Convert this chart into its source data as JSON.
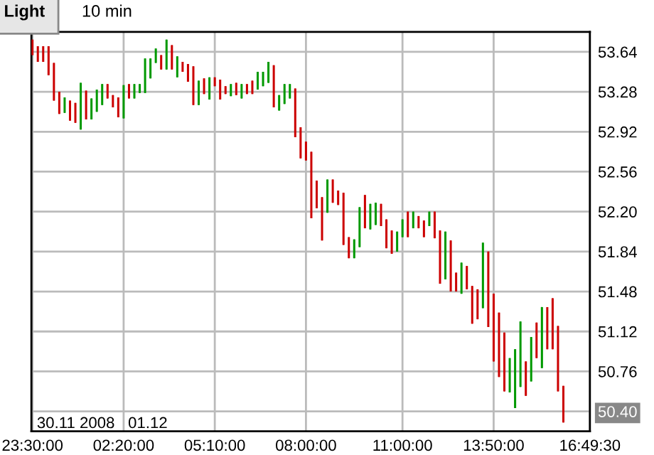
{
  "chart_data": {
    "type": "candlestick",
    "title": "Light",
    "subtitle": "10 min",
    "annotations": [
      "30.11 2008",
      "01.12"
    ],
    "x": [
      "2008-11-30T23:30",
      "2008-11-30T23:40",
      "2008-11-30T23:50",
      "2008-12-01T00:00",
      "2008-12-01T00:10",
      "2008-12-01T00:20",
      "2008-12-01T00:30",
      "2008-12-01T00:40",
      "2008-12-01T00:50",
      "2008-12-01T01:00",
      "2008-12-01T01:10",
      "2008-12-01T01:20",
      "2008-12-01T01:30",
      "2008-12-01T01:40",
      "2008-12-01T01:50",
      "2008-12-01T02:00",
      "2008-12-01T02:10",
      "2008-12-01T02:20",
      "2008-12-01T02:30",
      "2008-12-01T02:40",
      "2008-12-01T02:50",
      "2008-12-01T03:00",
      "2008-12-01T03:10",
      "2008-12-01T03:20",
      "2008-12-01T03:30",
      "2008-12-01T03:40",
      "2008-12-01T03:50",
      "2008-12-01T04:00",
      "2008-12-01T04:10",
      "2008-12-01T04:20",
      "2008-12-01T04:30",
      "2008-12-01T04:40",
      "2008-12-01T04:50",
      "2008-12-01T05:00",
      "2008-12-01T05:10",
      "2008-12-01T05:20",
      "2008-12-01T05:30",
      "2008-12-01T05:40",
      "2008-12-01T05:50",
      "2008-12-01T06:00",
      "2008-12-01T06:10",
      "2008-12-01T06:20",
      "2008-12-01T06:30",
      "2008-12-01T06:40",
      "2008-12-01T06:50",
      "2008-12-01T07:00",
      "2008-12-01T07:10",
      "2008-12-01T07:20",
      "2008-12-01T07:30",
      "2008-12-01T07:40",
      "2008-12-01T07:50",
      "2008-12-01T08:00",
      "2008-12-01T08:10",
      "2008-12-01T08:20",
      "2008-12-01T08:30",
      "2008-12-01T08:40",
      "2008-12-01T08:50",
      "2008-12-01T09:00",
      "2008-12-01T09:10",
      "2008-12-01T09:20",
      "2008-12-01T09:30",
      "2008-12-01T09:40",
      "2008-12-01T09:50",
      "2008-12-01T10:00",
      "2008-12-01T10:10",
      "2008-12-01T10:20",
      "2008-12-01T10:30",
      "2008-12-01T10:40",
      "2008-12-01T10:50",
      "2008-12-01T11:00",
      "2008-12-01T11:10",
      "2008-12-01T11:20",
      "2008-12-01T11:30",
      "2008-12-01T11:40",
      "2008-12-01T11:50",
      "2008-12-01T12:00",
      "2008-12-01T12:10",
      "2008-12-01T12:20",
      "2008-12-01T12:30",
      "2008-12-01T12:40",
      "2008-12-01T12:50",
      "2008-12-01T13:00",
      "2008-12-01T13:10",
      "2008-12-01T13:20",
      "2008-12-01T13:30",
      "2008-12-01T13:40",
      "2008-12-01T13:50",
      "2008-12-01T14:00",
      "2008-12-01T14:10",
      "2008-12-01T14:20",
      "2008-12-01T14:30",
      "2008-12-01T14:40",
      "2008-12-01T14:50",
      "2008-12-01T15:00",
      "2008-12-01T15:10",
      "2008-12-01T15:20",
      "2008-12-01T15:30",
      "2008-12-01T15:40",
      "2008-12-01T15:50",
      "2008-12-01T16:00"
    ],
    "ohlc": [
      [
        53.75,
        53.75,
        53.61,
        53.61
      ],
      [
        53.69,
        53.69,
        53.55,
        53.55
      ],
      [
        53.69,
        53.69,
        53.55,
        53.55
      ],
      [
        53.69,
        53.69,
        53.43,
        53.43
      ],
      [
        53.54,
        53.54,
        53.2,
        53.2
      ],
      [
        53.28,
        53.28,
        53.08,
        53.08
      ],
      [
        53.09,
        53.23,
        53.09,
        53.23
      ],
      [
        53.2,
        53.2,
        53.02,
        53.02
      ],
      [
        53.18,
        53.18,
        53.0,
        53.0
      ],
      [
        52.94,
        53.36,
        52.94,
        53.36
      ],
      [
        53.29,
        53.29,
        53.03,
        53.03
      ],
      [
        53.03,
        53.22,
        53.03,
        53.22
      ],
      [
        53.1,
        53.3,
        53.1,
        53.3
      ],
      [
        53.16,
        53.35,
        53.16,
        53.35
      ],
      [
        53.35,
        53.35,
        53.22,
        53.22
      ],
      [
        53.25,
        53.25,
        53.14,
        53.14
      ],
      [
        53.23,
        53.23,
        53.05,
        53.05
      ],
      [
        53.04,
        53.34,
        53.04,
        53.34
      ],
      [
        53.35,
        53.35,
        53.22,
        53.22
      ],
      [
        53.22,
        53.35,
        53.22,
        53.35
      ],
      [
        53.27,
        53.35,
        53.27,
        53.35
      ],
      [
        53.27,
        53.58,
        53.27,
        53.58
      ],
      [
        53.4,
        53.58,
        53.4,
        53.58
      ],
      [
        53.54,
        53.67,
        53.54,
        53.67
      ],
      [
        53.61,
        53.61,
        53.48,
        53.48
      ],
      [
        53.48,
        53.75,
        53.48,
        53.75
      ],
      [
        53.7,
        53.7,
        53.48,
        53.48
      ],
      [
        53.41,
        53.6,
        53.41,
        53.6
      ],
      [
        53.55,
        53.55,
        53.46,
        53.46
      ],
      [
        53.53,
        53.53,
        53.37,
        53.37
      ],
      [
        53.51,
        53.51,
        53.16,
        53.16
      ],
      [
        53.16,
        53.38,
        53.16,
        53.38
      ],
      [
        53.4,
        53.4,
        53.26,
        53.26
      ],
      [
        53.21,
        53.41,
        53.21,
        53.41
      ],
      [
        53.41,
        53.41,
        53.33,
        53.33
      ],
      [
        53.39,
        53.39,
        53.21,
        53.21
      ],
      [
        53.33,
        53.33,
        53.26,
        53.26
      ],
      [
        53.24,
        53.35,
        53.24,
        53.35
      ],
      [
        53.36,
        53.36,
        53.25,
        53.25
      ],
      [
        53.22,
        53.35,
        53.22,
        53.35
      ],
      [
        53.35,
        53.35,
        53.26,
        53.26
      ],
      [
        53.38,
        53.38,
        53.26,
        53.26
      ],
      [
        53.3,
        53.46,
        53.3,
        53.46
      ],
      [
        53.33,
        53.46,
        53.33,
        53.46
      ],
      [
        53.36,
        53.55,
        53.36,
        53.55
      ],
      [
        53.52,
        53.52,
        53.14,
        53.14
      ],
      [
        53.11,
        53.25,
        53.11,
        53.25
      ],
      [
        53.17,
        53.35,
        53.17,
        53.35
      ],
      [
        53.22,
        53.35,
        53.22,
        53.35
      ],
      [
        53.31,
        53.31,
        52.87,
        52.87
      ],
      [
        52.96,
        52.96,
        52.68,
        52.68
      ],
      [
        52.83,
        52.83,
        52.66,
        52.66
      ],
      [
        52.74,
        52.74,
        52.14,
        52.14
      ],
      [
        52.48,
        52.48,
        52.23,
        52.23
      ],
      [
        52.33,
        52.33,
        51.94,
        51.94
      ],
      [
        52.19,
        52.49,
        52.19,
        52.49
      ],
      [
        52.49,
        52.49,
        52.28,
        52.28
      ],
      [
        52.39,
        52.39,
        52.26,
        52.26
      ],
      [
        52.37,
        52.37,
        51.9,
        51.9
      ],
      [
        51.97,
        51.97,
        51.78,
        51.78
      ],
      [
        51.78,
        51.95,
        51.78,
        51.95
      ],
      [
        51.88,
        52.24,
        51.88,
        52.24
      ],
      [
        52.35,
        52.35,
        52.05,
        52.05
      ],
      [
        52.04,
        52.27,
        52.04,
        52.27
      ],
      [
        52.08,
        52.28,
        52.08,
        52.28
      ],
      [
        52.27,
        52.27,
        52.07,
        52.07
      ],
      [
        52.13,
        52.13,
        51.87,
        51.87
      ],
      [
        52.03,
        52.03,
        51.82,
        51.82
      ],
      [
        51.84,
        52.02,
        51.84,
        52.02
      ],
      [
        51.97,
        52.13,
        51.97,
        52.13
      ],
      [
        52.2,
        52.2,
        51.97,
        51.97
      ],
      [
        52.05,
        52.2,
        52.05,
        52.2
      ],
      [
        52.16,
        52.16,
        52.05,
        52.05
      ],
      [
        52.12,
        52.12,
        51.97,
        51.97
      ],
      [
        52.07,
        52.2,
        52.07,
        52.2
      ],
      [
        52.2,
        52.2,
        51.96,
        51.96
      ],
      [
        52.03,
        52.03,
        51.55,
        51.55
      ],
      [
        51.59,
        52.02,
        51.59,
        52.02
      ],
      [
        51.94,
        51.94,
        51.48,
        51.48
      ],
      [
        51.65,
        51.65,
        51.48,
        51.48
      ],
      [
        51.46,
        51.74,
        51.46,
        51.74
      ],
      [
        51.71,
        51.71,
        51.5,
        51.5
      ],
      [
        51.53,
        51.53,
        51.19,
        51.19
      ],
      [
        51.5,
        51.5,
        51.23,
        51.23
      ],
      [
        51.33,
        51.92,
        51.33,
        51.92
      ],
      [
        51.84,
        51.84,
        51.16,
        51.16
      ],
      [
        51.46,
        51.46,
        50.85,
        50.85
      ],
      [
        51.29,
        51.29,
        50.71,
        50.71
      ],
      [
        51.11,
        51.11,
        50.58,
        50.58
      ],
      [
        50.57,
        50.88,
        50.57,
        50.88
      ],
      [
        50.43,
        50.96,
        50.43,
        50.96
      ],
      [
        50.62,
        51.21,
        50.62,
        51.21
      ],
      [
        50.85,
        50.85,
        50.54,
        50.54
      ],
      [
        50.67,
        51.07,
        50.67,
        51.07
      ],
      [
        51.2,
        51.2,
        50.88,
        50.88
      ],
      [
        50.79,
        51.34,
        50.79,
        51.34
      ],
      [
        51.34,
        51.34,
        50.96,
        50.96
      ],
      [
        51.42,
        51.42,
        50.96,
        50.96
      ],
      [
        51.17,
        51.17,
        50.58,
        50.58
      ],
      [
        50.63,
        50.63,
        50.3,
        50.3
      ]
    ],
    "colors": [
      "#cc0000",
      "#cc0000",
      "#cc0000",
      "#cc0000",
      "#cc0000",
      "#cc0000",
      "#009900",
      "#cc0000",
      "#cc0000",
      "#009900",
      "#cc0000",
      "#009900",
      "#009900",
      "#009900",
      "#cc0000",
      "#cc0000",
      "#cc0000",
      "#009900",
      "#cc0000",
      "#009900",
      "#009900",
      "#009900",
      "#009900",
      "#009900",
      "#cc0000",
      "#009900",
      "#cc0000",
      "#009900",
      "#cc0000",
      "#cc0000",
      "#cc0000",
      "#009900",
      "#cc0000",
      "#009900",
      "#cc0000",
      "#cc0000",
      "#cc0000",
      "#009900",
      "#cc0000",
      "#009900",
      "#cc0000",
      "#cc0000",
      "#009900",
      "#009900",
      "#009900",
      "#cc0000",
      "#009900",
      "#009900",
      "#009900",
      "#cc0000",
      "#cc0000",
      "#cc0000",
      "#cc0000",
      "#cc0000",
      "#cc0000",
      "#009900",
      "#cc0000",
      "#cc0000",
      "#cc0000",
      "#cc0000",
      "#009900",
      "#009900",
      "#cc0000",
      "#009900",
      "#009900",
      "#cc0000",
      "#cc0000",
      "#cc0000",
      "#009900",
      "#009900",
      "#cc0000",
      "#009900",
      "#cc0000",
      "#cc0000",
      "#009900",
      "#cc0000",
      "#cc0000",
      "#009900",
      "#cc0000",
      "#cc0000",
      "#009900",
      "#cc0000",
      "#cc0000",
      "#cc0000",
      "#009900",
      "#cc0000",
      "#cc0000",
      "#cc0000",
      "#cc0000",
      "#009900",
      "#009900",
      "#009900",
      "#cc0000",
      "#009900",
      "#cc0000",
      "#009900",
      "#cc0000",
      "#cc0000",
      "#cc0000",
      "#cc0000"
    ],
    "xlim": [
      "2008-11-30T23:28",
      "2008-12-01T16:49:30"
    ],
    "xticks": [
      {
        "value": "2008-11-30T23:30",
        "label": "23:30:00"
      },
      {
        "value": "2008-12-01T02:20",
        "label": "02:20:00"
      },
      {
        "value": "2008-12-01T05:10",
        "label": "05:10:00"
      },
      {
        "value": "2008-12-01T08:00",
        "label": "08:00:00"
      },
      {
        "value": "2008-12-01T11:00",
        "label": "11:00:00"
      },
      {
        "value": "2008-12-01T13:50",
        "label": "13:50:00"
      },
      {
        "value": "2008-12-01T16:49:30",
        "label": "16:49:30"
      }
    ],
    "ylim": [
      50.22,
      53.82
    ],
    "yticks": [
      {
        "value": 50.4,
        "label": "50.40"
      },
      {
        "value": 50.76,
        "label": "50.76"
      },
      {
        "value": 51.12,
        "label": "51.12"
      },
      {
        "value": 51.48,
        "label": "51.48"
      },
      {
        "value": 51.84,
        "label": "51.84"
      },
      {
        "value": 52.2,
        "label": "52.20"
      },
      {
        "value": 52.56,
        "label": "52.56"
      },
      {
        "value": 52.92,
        "label": "52.92"
      },
      {
        "value": 53.28,
        "label": "53.28"
      },
      {
        "value": 53.64,
        "label": "53.64"
      }
    ],
    "grid": true
  }
}
